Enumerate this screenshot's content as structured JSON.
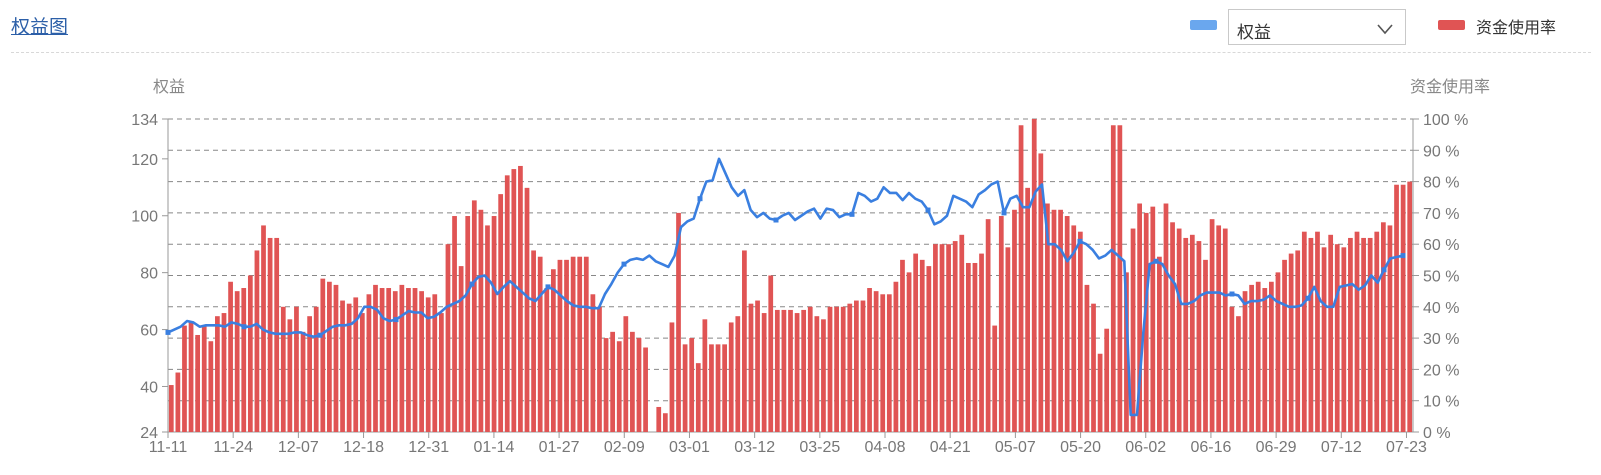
{
  "header": {
    "title": "权益图",
    "selected_metric": "权益",
    "legend_rate_label": "资金使用率"
  },
  "colors": {
    "bar": "#e05454",
    "line": "#3a7fe0",
    "legend_line": "#6aa7ee"
  },
  "chart_data": {
    "type": "bar+line",
    "left_axis": {
      "name": "权益",
      "min": 24,
      "max": 134,
      "ticks": [
        24,
        40,
        60,
        80,
        100,
        120,
        134
      ]
    },
    "right_axis": {
      "name": "资金使用率",
      "min": 0,
      "max": 100,
      "ticks": [
        0,
        10,
        20,
        30,
        40,
        50,
        60,
        70,
        80,
        90,
        100
      ],
      "unit": " %"
    },
    "x_tick_labels": [
      "11-11",
      "11-24",
      "12-07",
      "12-18",
      "12-31",
      "01-14",
      "01-27",
      "02-09",
      "03-01",
      "03-12",
      "03-25",
      "04-08",
      "04-21",
      "05-07",
      "05-20",
      "06-02",
      "06-16",
      "06-29",
      "07-12",
      "07-23"
    ],
    "series": [
      {
        "name": "资金使用率",
        "kind": "bar",
        "axis": "right",
        "values": [
          15,
          19,
          34,
          35,
          31,
          34,
          29,
          37,
          38,
          48,
          45,
          46,
          50,
          58,
          66,
          62,
          62,
          40,
          36,
          40,
          32,
          37,
          40,
          49,
          48,
          47,
          42,
          41,
          43,
          38,
          44,
          47,
          46,
          46,
          45,
          47,
          46,
          46,
          45,
          43,
          44,
          38,
          60,
          69,
          53,
          69,
          74,
          71,
          66,
          69,
          76,
          82,
          84,
          85,
          78,
          58,
          56,
          46,
          52,
          55,
          55,
          56,
          56,
          56,
          44,
          40,
          30,
          32,
          29,
          37,
          32,
          30,
          27,
          0,
          8,
          6,
          35,
          70,
          28,
          30,
          22,
          36,
          28,
          28,
          28,
          35,
          37,
          58,
          41,
          42,
          38,
          50,
          39,
          39,
          39,
          38,
          39,
          40,
          37,
          36,
          40,
          40,
          40,
          41,
          42,
          42,
          46,
          45,
          44,
          44,
          48,
          55,
          51,
          57,
          55,
          53,
          60,
          60,
          60,
          61,
          63,
          54,
          54,
          57,
          68,
          34,
          69,
          59,
          71,
          98,
          78,
          100,
          89,
          73,
          71,
          71,
          69,
          66,
          64,
          47,
          41,
          25,
          33,
          98,
          98,
          51,
          65,
          73,
          70,
          72,
          56,
          73,
          67,
          65,
          62,
          63,
          61,
          55,
          68,
          66,
          65,
          40,
          37,
          45,
          47,
          48,
          46,
          48,
          51,
          55,
          57,
          58,
          64,
          62,
          64,
          59,
          63,
          60,
          59,
          62,
          64,
          62,
          62,
          64,
          67,
          66,
          79,
          79,
          80
        ]
      },
      {
        "name": "权益",
        "kind": "line",
        "axis": "left",
        "values": [
          59.0,
          60.0,
          61.0,
          63.0,
          62.5,
          61.0,
          61.5,
          61.5,
          61.5,
          61.0,
          62.5,
          62.0,
          61.0,
          61.0,
          62.0,
          60.0,
          59.0,
          58.5,
          58.5,
          58.5,
          59.0,
          59.0,
          58.0,
          57.5,
          58.0,
          59.5,
          61.0,
          61.5,
          61.5,
          62.0,
          64.0,
          68.0,
          68.0,
          67.0,
          64.0,
          63.0,
          63.5,
          65.0,
          66.5,
          66.0,
          66.0,
          64.0,
          64.5,
          66.0,
          68.0,
          69.0,
          70.0,
          72.0,
          76.0,
          78.5,
          79.0,
          76.5,
          72.5,
          75.0,
          77.0,
          75.0,
          73.0,
          71.0,
          70.0,
          72.5,
          75.0,
          74.0,
          72.0,
          70.0,
          68.5,
          68.0,
          68.0,
          67.5,
          67.5,
          72.5,
          76.0,
          80.0,
          83.0,
          84.5,
          85.0,
          84.5,
          86.0,
          84.0,
          83.0,
          82.0,
          86.0,
          96.0,
          98.0,
          99.0,
          106.0,
          112.0,
          112.5,
          120.0,
          115.0,
          110.0,
          107.0,
          109.0,
          102.0,
          99.5,
          101.0,
          99.0,
          98.5,
          100.0,
          101.0,
          98.5,
          100.0,
          101.5,
          102.5,
          99.0,
          102.5,
          102.0,
          99.5,
          100.5,
          100.5,
          108.0,
          107.0,
          105.0,
          106.0,
          110.0,
          108.0,
          108.0,
          105.5,
          108.0,
          106.0,
          105.0,
          102.0,
          97.0,
          98.0,
          100.0,
          107.0,
          106.0,
          105.0,
          103.0,
          107.5,
          109.0,
          111.0,
          112.0,
          101.0,
          106.0,
          107.0,
          103.0,
          103.0,
          108.5,
          111.0,
          90.0,
          90.0,
          88.0,
          84.0,
          87.0,
          91.0,
          90.0,
          88.0,
          85.0,
          86.0,
          88.0,
          86.0,
          84.0,
          30.0,
          30.0,
          59.0,
          83.0,
          84.0,
          83.0,
          79.0,
          76.0,
          69.0,
          69.0,
          70.0,
          72.0,
          73.0,
          73.0,
          73.0,
          72.0,
          72.5,
          72.0,
          69.0,
          70.0,
          70.0,
          70.5,
          72.0,
          70.0,
          69.0,
          68.0,
          68.0,
          68.5,
          71.0,
          75.0,
          70.0,
          68.0,
          68.0,
          75.0,
          75.5,
          76.0,
          74.0,
          75.5,
          79.0,
          76.5,
          81.0,
          85.0,
          85.5,
          86.0
        ]
      }
    ],
    "grid": true,
    "legend_position": "top-right"
  }
}
